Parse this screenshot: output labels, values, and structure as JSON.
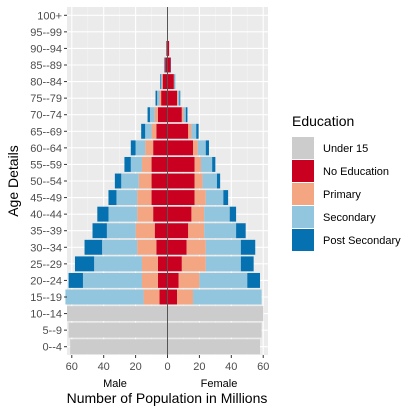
{
  "chart_data": {
    "type": "bar",
    "orientation": "horizontal",
    "stacked": true,
    "title": "",
    "xlabel": "Number of Population in Millions",
    "ylabel": "Age Details",
    "side_labels": {
      "left": "Male",
      "right": "Female"
    },
    "xlim": [
      -63,
      63
    ],
    "x_ticks": [
      -60,
      -40,
      -20,
      0,
      20,
      40,
      60
    ],
    "x_tick_labels": [
      "60",
      "40",
      "20",
      "0",
      "20",
      "40",
      "60"
    ],
    "categories": [
      "0--4",
      "5--9",
      "10--14",
      "15--19",
      "20--24",
      "25--29",
      "30--34",
      "35--39",
      "40--44",
      "45--49",
      "50--54",
      "55--59",
      "60--64",
      "65--69",
      "70--74",
      "75--79",
      "80--84",
      "85--89",
      "90--94",
      "95--99",
      "100+"
    ],
    "legend": {
      "title": "Education",
      "position": "right"
    },
    "series": [
      {
        "name": "Under 15",
        "color": "#cccccc",
        "male": [
          61,
          62,
          63,
          0,
          0,
          0,
          0,
          0,
          0,
          0,
          0,
          0,
          0,
          0,
          0,
          0,
          0,
          0,
          0,
          0,
          0
        ],
        "female": [
          58,
          59,
          60,
          0,
          0,
          0,
          0,
          0,
          0,
          0,
          0,
          0,
          0,
          0,
          0,
          0,
          0,
          0,
          0,
          0,
          0
        ]
      },
      {
        "name": "No Education",
        "color": "#ca0020",
        "male": [
          0,
          0,
          0,
          5,
          6,
          6,
          7,
          8,
          9,
          10,
          10,
          10,
          9,
          7,
          6,
          4,
          3,
          1.5,
          0.7,
          0,
          0
        ],
        "female": [
          0,
          0,
          0,
          6,
          7,
          9,
          12,
          13,
          15,
          17,
          17,
          17,
          16,
          13,
          9,
          6,
          4,
          2,
          1,
          0.3,
          0
        ]
      },
      {
        "name": "Primary",
        "color": "#f4a582",
        "male": [
          0,
          0,
          0,
          10,
          10,
          10,
          12,
          12,
          10,
          9,
          8,
          6,
          5,
          3,
          2,
          1,
          0.5,
          0.2,
          0,
          0,
          0
        ],
        "female": [
          0,
          0,
          0,
          10,
          13,
          15,
          12,
          10,
          8,
          7,
          5,
          4,
          3,
          2,
          1,
          0.5,
          0.2,
          0,
          0,
          0,
          0
        ]
      },
      {
        "name": "Secondary",
        "color": "#92c5de",
        "male": [
          0,
          0,
          0,
          49,
          37,
          30,
          22,
          18,
          18,
          13,
          11,
          7,
          6,
          4,
          3,
          1.5,
          0.5,
          0.2,
          0,
          0,
          0
        ],
        "female": [
          0,
          0,
          0,
          43,
          30,
          22,
          22,
          20,
          16,
          11,
          9,
          7,
          5,
          3,
          1.5,
          1,
          0.3,
          0,
          0,
          0,
          0
        ]
      },
      {
        "name": "Post Secondary",
        "color": "#0571b0",
        "male": [
          0,
          0,
          0,
          0,
          9,
          12,
          11,
          9,
          7,
          5,
          4,
          4,
          3,
          2.5,
          1.5,
          1,
          0.5,
          0.3,
          0,
          0,
          0
        ],
        "female": [
          0,
          0,
          0,
          0,
          8,
          8,
          9,
          6,
          4,
          3,
          2,
          2,
          2,
          1.5,
          1,
          0.5,
          0.3,
          0.2,
          0,
          0,
          0
        ]
      }
    ],
    "grid": true,
    "zero_line": true
  }
}
